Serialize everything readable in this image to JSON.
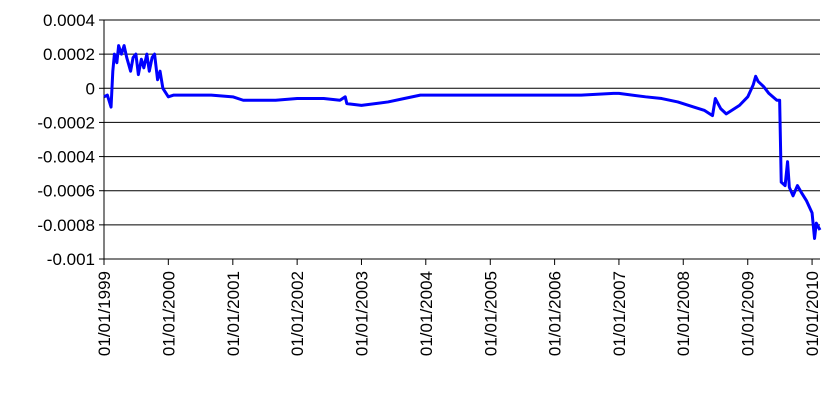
{
  "chart_data": {
    "type": "line",
    "title": "",
    "xlabel": "",
    "ylabel": "",
    "ylim": [
      -0.001,
      0.0004
    ],
    "y_ticks": [
      0.0004,
      0.0002,
      0,
      -0.0002,
      -0.0004,
      -0.0006,
      -0.0008,
      -0.001
    ],
    "y_tick_labels": [
      "0.0004",
      "0.0002",
      "0",
      "-0.0002",
      "-0.0004",
      "-0.0006",
      "-0.0008",
      "-0.001"
    ],
    "x_tick_labels": [
      "01/01/1999",
      "01/01/2000",
      "01/01/2001",
      "01/01/2002",
      "01/01/2003",
      "01/01/2004",
      "01/01/2005",
      "01/01/2006",
      "01/01/2007",
      "01/01/2008",
      "01/01/2009",
      "01/01/2010"
    ],
    "xlim": [
      "1999-01-01",
      "2010-02-15"
    ],
    "grid": "horizontal",
    "line_color": "#0000ff",
    "series": [
      {
        "points": [
          [
            "1999-01-01",
            -5e-05
          ],
          [
            "1999-01-20",
            -4e-05
          ],
          [
            "1999-02-10",
            -0.00011
          ],
          [
            "1999-02-20",
            0.0001
          ],
          [
            "1999-03-01",
            0.0002
          ],
          [
            "1999-03-15",
            0.00015
          ],
          [
            "1999-03-25",
            0.00025
          ],
          [
            "1999-04-10",
            0.0002
          ],
          [
            "1999-04-25",
            0.00025
          ],
          [
            "1999-05-10",
            0.00018
          ],
          [
            "1999-06-01",
            0.0001
          ],
          [
            "1999-06-15",
            0.00018
          ],
          [
            "1999-07-01",
            0.0002
          ],
          [
            "1999-07-15",
            8e-05
          ],
          [
            "1999-08-01",
            0.00017
          ],
          [
            "1999-08-15",
            0.00012
          ],
          [
            "1999-09-01",
            0.0002
          ],
          [
            "1999-09-15",
            0.0001
          ],
          [
            "1999-10-01",
            0.00018
          ],
          [
            "1999-10-15",
            0.0002
          ],
          [
            "1999-11-01",
            5e-05
          ],
          [
            "1999-11-15",
            0.0001
          ],
          [
            "1999-12-01",
            0.0
          ],
          [
            "2000-01-01",
            -5e-05
          ],
          [
            "2000-02-01",
            -4e-05
          ],
          [
            "2000-06-01",
            -4e-05
          ],
          [
            "2000-09-01",
            -4e-05
          ],
          [
            "2001-01-01",
            -5e-05
          ],
          [
            "2001-03-01",
            -7e-05
          ],
          [
            "2001-09-01",
            -7e-05
          ],
          [
            "2002-01-01",
            -6e-05
          ],
          [
            "2002-06-01",
            -6e-05
          ],
          [
            "2002-09-01",
            -7e-05
          ],
          [
            "2002-10-01",
            -5e-05
          ],
          [
            "2002-10-10",
            -9e-05
          ],
          [
            "2003-01-01",
            -0.0001
          ],
          [
            "2003-06-01",
            -8e-05
          ],
          [
            "2003-09-01",
            -6e-05
          ],
          [
            "2003-12-01",
            -4e-05
          ],
          [
            "2004-06-01",
            -4e-05
          ],
          [
            "2005-01-01",
            -4e-05
          ],
          [
            "2005-06-01",
            -4e-05
          ],
          [
            "2006-01-01",
            -4e-05
          ],
          [
            "2006-06-01",
            -4e-05
          ],
          [
            "2006-12-01",
            -3e-05
          ],
          [
            "2007-01-01",
            -3e-05
          ],
          [
            "2007-06-01",
            -5e-05
          ],
          [
            "2007-09-01",
            -6e-05
          ],
          [
            "2007-12-01",
            -8e-05
          ],
          [
            "2008-03-01",
            -0.00011
          ],
          [
            "2008-05-01",
            -0.00013
          ],
          [
            "2008-06-15",
            -0.00016
          ],
          [
            "2008-07-01",
            -6e-05
          ],
          [
            "2008-08-01",
            -0.00012
          ],
          [
            "2008-09-01",
            -0.00015
          ],
          [
            "2008-10-01",
            -0.00013
          ],
          [
            "2008-11-15",
            -0.0001
          ],
          [
            "2009-01-01",
            -5e-05
          ],
          [
            "2009-02-01",
            2e-05
          ],
          [
            "2009-02-15",
            7e-05
          ],
          [
            "2009-03-01",
            4e-05
          ],
          [
            "2009-04-01",
            1e-05
          ],
          [
            "2009-05-01",
            -3e-05
          ],
          [
            "2009-06-15",
            -7e-05
          ],
          [
            "2009-07-01",
            -7e-05
          ],
          [
            "2009-07-10",
            -0.00055
          ],
          [
            "2009-08-01",
            -0.00057
          ],
          [
            "2009-08-15",
            -0.00043
          ],
          [
            "2009-08-25",
            -0.00058
          ],
          [
            "2009-09-15",
            -0.00063
          ],
          [
            "2009-10-10",
            -0.00057
          ],
          [
            "2009-11-01",
            -0.00061
          ],
          [
            "2009-12-01",
            -0.00066
          ],
          [
            "2010-01-01",
            -0.00073
          ],
          [
            "2010-01-15",
            -0.00088
          ],
          [
            "2010-01-25",
            -0.00079
          ],
          [
            "2010-02-15",
            -0.00083
          ]
        ]
      }
    ]
  }
}
